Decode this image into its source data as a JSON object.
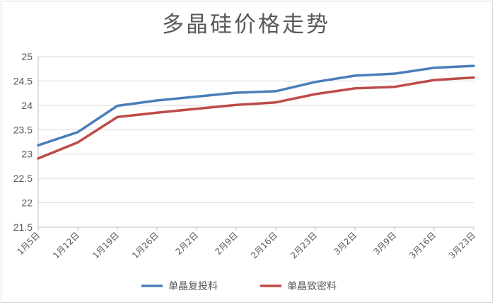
{
  "chart_data": {
    "type": "line",
    "title": "多晶硅价格走势",
    "xlabel": "",
    "ylabel": "",
    "categories": [
      "1月5日",
      "1月12日",
      "1月19日",
      "1月26日",
      "2月2日",
      "2月9日",
      "2月16日",
      "2月23日",
      "3月2日",
      "3月9日",
      "3月16日",
      "3月23日"
    ],
    "series": [
      {
        "name": "单晶复投料",
        "color": "#4a7ebb",
        "values": [
          23.18,
          23.45,
          23.99,
          24.1,
          24.18,
          24.26,
          24.29,
          24.48,
          24.61,
          24.65,
          24.77,
          24.81
        ]
      },
      {
        "name": "单晶致密料",
        "color": "#be4b48",
        "values": [
          22.91,
          23.24,
          23.76,
          23.85,
          23.93,
          24.01,
          24.06,
          24.23,
          24.35,
          24.38,
          24.52,
          24.57
        ]
      }
    ],
    "ylim": [
      21.5,
      25
    ],
    "yticks": [
      "21.5",
      "22",
      "22.5",
      "23",
      "23.5",
      "24",
      "24.5",
      "25"
    ],
    "grid": true,
    "legend": "bottom"
  }
}
